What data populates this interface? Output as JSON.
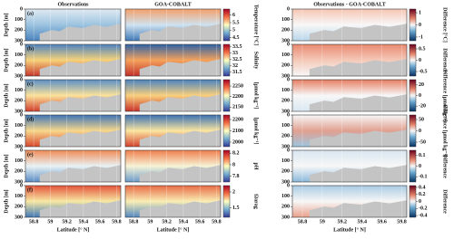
{
  "chart_data": {
    "type": "section",
    "columns": [
      "Observations",
      "GOA-COBALT",
      "Observations - GOA-COBALT"
    ],
    "x_label": "Latitude [° N]",
    "y_label": "Depth [m]",
    "xlim": [
      58.7,
      59.85
    ],
    "xticks": [
      58.8,
      59,
      59.2,
      59.4,
      59.6,
      59.8
    ],
    "ylim": [
      0,
      300
    ],
    "yticks": [
      0,
      100,
      200,
      300
    ],
    "rows": [
      {
        "letter": "(a)",
        "colorbar": {
          "label": "Temperature [°C]",
          "lim": [
            4.3,
            6.4
          ],
          "ticks": [
            4.5,
            5,
            5.5,
            6
          ]
        },
        "difference": {
          "label": "Difference [°C]",
          "lim": [
            -1.3,
            1.3
          ],
          "ticks": [
            1,
            0,
            -1
          ]
        }
      },
      {
        "letter": "(b)",
        "colorbar": {
          "label": "Salinity",
          "lim": [
            31.2,
            33.7
          ],
          "ticks": [
            31.5,
            32,
            32.5,
            33,
            33.5
          ]
        },
        "difference": {
          "label": "Difference",
          "lim": [
            -0.7,
            0.7
          ],
          "ticks": [
            0.5,
            0,
            -0.5
          ]
        }
      },
      {
        "letter": "(c)",
        "colorbar": {
          "label": "[μmol kg⁻¹]",
          "lim": [
            2130,
            2280
          ],
          "ticks": [
            2150,
            2200,
            2250
          ]
        },
        "difference": {
          "label": "Difference [μmol kg⁻¹]",
          "lim": [
            -30,
            30
          ],
          "ticks": [
            20,
            0,
            -20
          ]
        }
      },
      {
        "letter": "(d)",
        "colorbar": {
          "label": "[μmol kg⁻¹]",
          "lim": [
            1960,
            2240
          ],
          "ticks": [
            2000,
            2100,
            2200
          ]
        },
        "difference": {
          "label": "Difference [μmol kg⁻¹]",
          "lim": [
            -70,
            70
          ],
          "ticks": [
            50,
            0,
            -50
          ]
        }
      },
      {
        "letter": "(e)",
        "colorbar": {
          "label": "pH",
          "lim": [
            7.7,
            8.25
          ],
          "ticks": [
            7.8,
            8,
            8.2
          ]
        },
        "difference": {
          "label": "Difference",
          "lim": [
            -0.15,
            0.15
          ],
          "ticks": [
            0.1,
            0,
            -0.1
          ]
        }
      },
      {
        "letter": "(f)",
        "colorbar": {
          "label": "Ωarag",
          "lim": [
            1.2,
            2.2
          ],
          "ticks": [
            1.5,
            2
          ]
        },
        "difference": {
          "label": "Difference",
          "lim": [
            -0.45,
            0.45
          ],
          "ticks": [
            0.4,
            0.2,
            0,
            -0.2,
            -0.4
          ]
        }
      }
    ]
  }
}
